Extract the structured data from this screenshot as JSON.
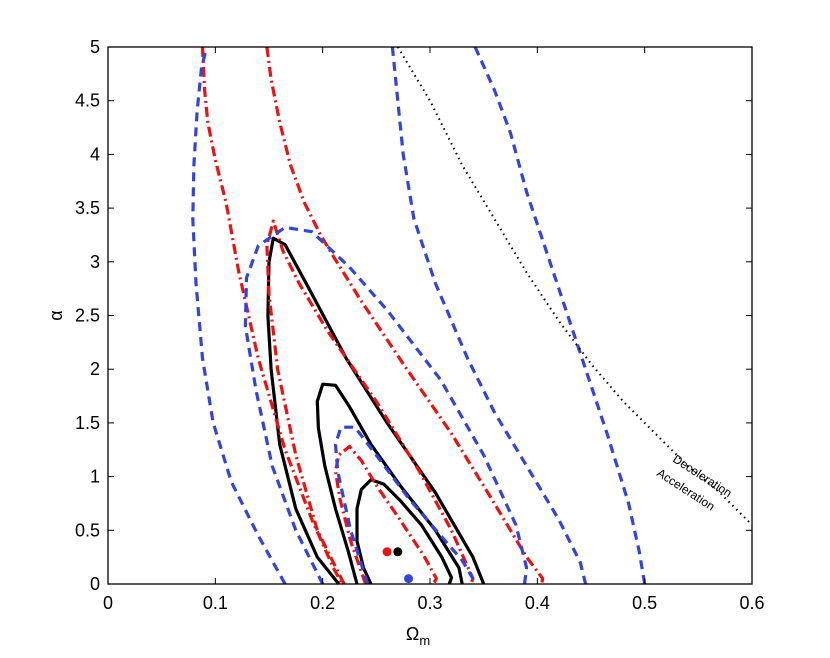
{
  "chart_data": {
    "type": "line",
    "title": "",
    "xlabel": "Ω",
    "xlabel_sub": "m",
    "ylabel": "α",
    "xlim": [
      0,
      0.6
    ],
    "ylim": [
      0,
      5
    ],
    "xticks": [
      "0",
      "0.1",
      "0.2",
      "0.3",
      "0.4",
      "0.5",
      "0.6"
    ],
    "yticks": [
      "0",
      "0.5",
      "1",
      "1.5",
      "2",
      "2.5",
      "3",
      "3.5",
      "4",
      "4.5",
      "5"
    ],
    "grid": false,
    "legend": "none",
    "annotations": [
      "Deceleration",
      "Acceleration"
    ],
    "series": [
      {
        "style": "solid",
        "color": "#000000",
        "contours": [
          [
            [
              0.245,
              0
            ],
            [
              0.238,
              0.15
            ],
            [
              0.232,
              0.4
            ],
            [
              0.232,
              0.7
            ],
            [
              0.236,
              0.88
            ],
            [
              0.245,
              0.97
            ],
            [
              0.257,
              0.93
            ],
            [
              0.272,
              0.78
            ],
            [
              0.292,
              0.55
            ],
            [
              0.311,
              0.25
            ],
            [
              0.32,
              0.06
            ],
            [
              0.318,
              0
            ]
          ],
          [
            [
              0.232,
              0
            ],
            [
              0.224,
              0.3
            ],
            [
              0.212,
              0.7
            ],
            [
              0.202,
              1.1
            ],
            [
              0.196,
              1.45
            ],
            [
              0.195,
              1.7
            ],
            [
              0.2,
              1.86
            ],
            [
              0.212,
              1.85
            ],
            [
              0.225,
              1.65
            ],
            [
              0.245,
              1.3
            ],
            [
              0.272,
              0.92
            ],
            [
              0.305,
              0.5
            ],
            [
              0.327,
              0.15
            ],
            [
              0.33,
              0
            ]
          ],
          [
            [
              0.215,
              0
            ],
            [
              0.195,
              0.25
            ],
            [
              0.175,
              0.7
            ],
            [
              0.16,
              1.3
            ],
            [
              0.152,
              2.0
            ],
            [
              0.149,
              2.5
            ],
            [
              0.15,
              3.0
            ],
            [
              0.154,
              3.22
            ],
            [
              0.165,
              3.16
            ],
            [
              0.19,
              2.7
            ],
            [
              0.222,
              2.1
            ],
            [
              0.26,
              1.5
            ],
            [
              0.305,
              0.85
            ],
            [
              0.34,
              0.25
            ],
            [
              0.35,
              0
            ]
          ]
        ]
      },
      {
        "style": "dashdot",
        "color": "#ee1111",
        "contours": [
          [
            [
              0.24,
              0
            ],
            [
              0.226,
              0.4
            ],
            [
              0.216,
              0.8
            ],
            [
              0.212,
              1.05
            ],
            [
              0.215,
              1.2
            ],
            [
              0.225,
              1.28
            ],
            [
              0.236,
              1.15
            ],
            [
              0.25,
              0.92
            ],
            [
              0.272,
              0.6
            ],
            [
              0.295,
              0.25
            ],
            [
              0.306,
              0.05
            ],
            [
              0.303,
              0
            ]
          ],
          [
            [
              0.22,
              0
            ],
            [
              0.195,
              0.5
            ],
            [
              0.175,
              1.2
            ],
            [
              0.158,
              2.0
            ],
            [
              0.15,
              2.7
            ],
            [
              0.148,
              3.15
            ],
            [
              0.154,
              3.38
            ],
            [
              0.163,
              3.1
            ],
            [
              0.178,
              2.8
            ],
            [
              0.205,
              2.35
            ],
            [
              0.25,
              1.7
            ],
            [
              0.29,
              1.05
            ],
            [
              0.32,
              0.5
            ],
            [
              0.34,
              0.05
            ],
            [
              0.338,
              0
            ]
          ],
          [
            [
              0.088,
              5
            ],
            [
              0.09,
              4.6
            ],
            [
              0.093,
              4.3
            ],
            [
              0.1,
              3.95
            ],
            [
              0.11,
              3.55
            ],
            [
              0.122,
              2.9
            ],
            [
              0.14,
              2.1
            ],
            [
              0.165,
              1.25
            ],
            [
              0.19,
              0.6
            ],
            [
              0.21,
              0.15
            ],
            [
              0.218,
              0
            ]
          ],
          [
            [
              0.148,
              5
            ],
            [
              0.152,
              4.7
            ],
            [
              0.16,
              4.3
            ],
            [
              0.17,
              3.9
            ],
            [
              0.183,
              3.55
            ],
            [
              0.198,
              3.25
            ],
            [
              0.21,
              3.05
            ],
            [
              0.235,
              2.65
            ],
            [
              0.275,
              2.05
            ],
            [
              0.32,
              1.4
            ],
            [
              0.36,
              0.75
            ],
            [
              0.39,
              0.25
            ],
            [
              0.405,
              0.05
            ],
            [
              0.404,
              0
            ]
          ]
        ]
      },
      {
        "style": "dashed",
        "color": "#3344dd",
        "contours": [
          [
            [
              0.242,
              0
            ],
            [
              0.226,
              0.5
            ],
            [
              0.214,
              1.05
            ],
            [
              0.212,
              1.3
            ],
            [
              0.217,
              1.46
            ],
            [
              0.23,
              1.46
            ],
            [
              0.25,
              1.2
            ],
            [
              0.28,
              0.8
            ],
            [
              0.31,
              0.45
            ],
            [
              0.33,
              0.22
            ],
            [
              0.34,
              0.05
            ],
            [
              0.338,
              0
            ]
          ],
          [
            [
              0.2,
              0
            ],
            [
              0.175,
              0.5
            ],
            [
              0.153,
              1.1
            ],
            [
              0.138,
              1.8
            ],
            [
              0.128,
              2.4
            ],
            [
              0.129,
              2.85
            ],
            [
              0.14,
              3.15
            ],
            [
              0.165,
              3.32
            ],
            [
              0.19,
              3.28
            ],
            [
              0.225,
              2.95
            ],
            [
              0.26,
              2.55
            ],
            [
              0.31,
              1.9
            ],
            [
              0.35,
              1.2
            ],
            [
              0.38,
              0.55
            ],
            [
              0.39,
              0.15
            ],
            [
              0.388,
              0
            ]
          ],
          [
            [
              0.165,
              0
            ],
            [
              0.14,
              0.45
            ],
            [
              0.115,
              0.95
            ],
            [
              0.098,
              1.5
            ],
            [
              0.088,
              2.1
            ],
            [
              0.082,
              2.8
            ],
            [
              0.079,
              3.4
            ],
            [
              0.08,
              3.9
            ],
            [
              0.083,
              4.4
            ],
            [
              0.087,
              4.8
            ],
            [
              0.092,
              5
            ]
          ],
          [
            [
              0.265,
              5
            ],
            [
              0.27,
              4.5
            ],
            [
              0.275,
              4.0
            ],
            [
              0.285,
              3.4
            ],
            [
              0.305,
              2.8
            ],
            [
              0.335,
              2.1
            ],
            [
              0.36,
              1.6
            ],
            [
              0.39,
              1.1
            ],
            [
              0.42,
              0.6
            ],
            [
              0.44,
              0.2
            ],
            [
              0.445,
              0
            ]
          ],
          [
            [
              0.342,
              5
            ],
            [
              0.36,
              4.6
            ],
            [
              0.375,
              4.2
            ],
            [
              0.39,
              3.65
            ],
            [
              0.405,
              3.2
            ],
            [
              0.425,
              2.6
            ],
            [
              0.445,
              2.0
            ],
            [
              0.465,
              1.4
            ],
            [
              0.485,
              0.75
            ],
            [
              0.495,
              0.3
            ],
            [
              0.5,
              0
            ]
          ]
        ]
      },
      {
        "style": "dotted",
        "color": "#000000",
        "contours": [
          [
            [
              0.27,
              5
            ],
            [
              0.3,
              4.5
            ],
            [
              0.33,
              3.9
            ],
            [
              0.36,
              3.4
            ],
            [
              0.39,
              2.9
            ],
            [
              0.42,
              2.45
            ],
            [
              0.45,
              2.05
            ],
            [
              0.48,
              1.7
            ],
            [
              0.51,
              1.4
            ],
            [
              0.54,
              1.1
            ],
            [
              0.57,
              0.85
            ],
            [
              0.6,
              0.55
            ]
          ]
        ]
      }
    ],
    "points": [
      {
        "x": 0.26,
        "y": 0.3,
        "color": "#ee1111"
      },
      {
        "x": 0.27,
        "y": 0.3,
        "color": "#000000"
      },
      {
        "x": 0.28,
        "y": 0.05,
        "color": "#3344dd"
      }
    ]
  }
}
